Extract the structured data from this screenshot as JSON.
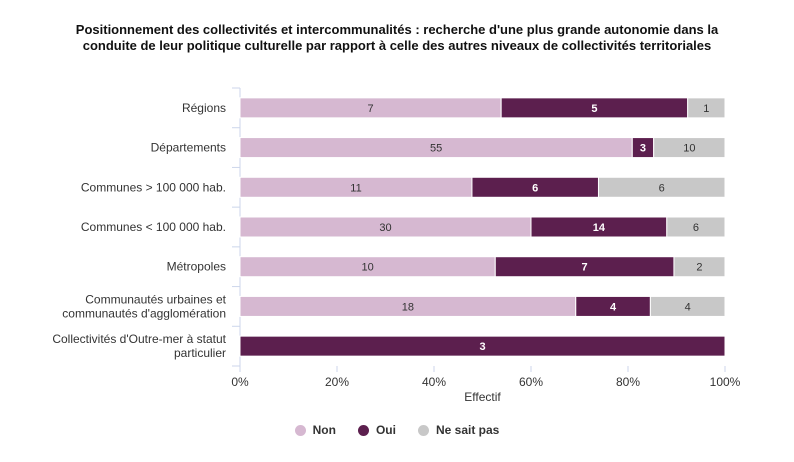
{
  "chart_data": {
    "type": "bar",
    "orientation": "horizontal",
    "stacking": "percent",
    "title_lines": [
      "Positionnement des collectivités et intercommunalités : recherche d'une plus grande autonomie dans la",
      "conduite de leur politique culturelle par rapport à celle des autres niveaux de collectivités territoriales"
    ],
    "categories": [
      [
        "Régions"
      ],
      [
        "Départements"
      ],
      [
        "Communes > 100 000 hab."
      ],
      [
        "Communes < 100 000 hab."
      ],
      [
        "Métropoles"
      ],
      [
        "Communautés urbaines et",
        "communautés d'agglomération"
      ],
      [
        "Collectivités d'Outre-mer à statut",
        "particulier"
      ]
    ],
    "series": [
      {
        "name": "Non",
        "color": "#d6b8d1",
        "label_color": "#333333",
        "values": [
          7,
          55,
          11,
          30,
          10,
          18,
          0
        ]
      },
      {
        "name": "Oui",
        "color": "#5c1f4e",
        "label_color": "#ffffff",
        "values": [
          5,
          3,
          6,
          14,
          7,
          4,
          3
        ]
      },
      {
        "name": "Ne sait pas",
        "color": "#c8c8c8",
        "label_color": "#333333",
        "values": [
          1,
          10,
          6,
          6,
          2,
          4,
          0
        ]
      }
    ],
    "xlabel": "Effectif",
    "xticks": [
      "0%",
      "20%",
      "40%",
      "60%",
      "80%",
      "100%"
    ],
    "xlim": [
      0,
      100
    ],
    "grid": false,
    "legend_position": "bottom-center"
  }
}
